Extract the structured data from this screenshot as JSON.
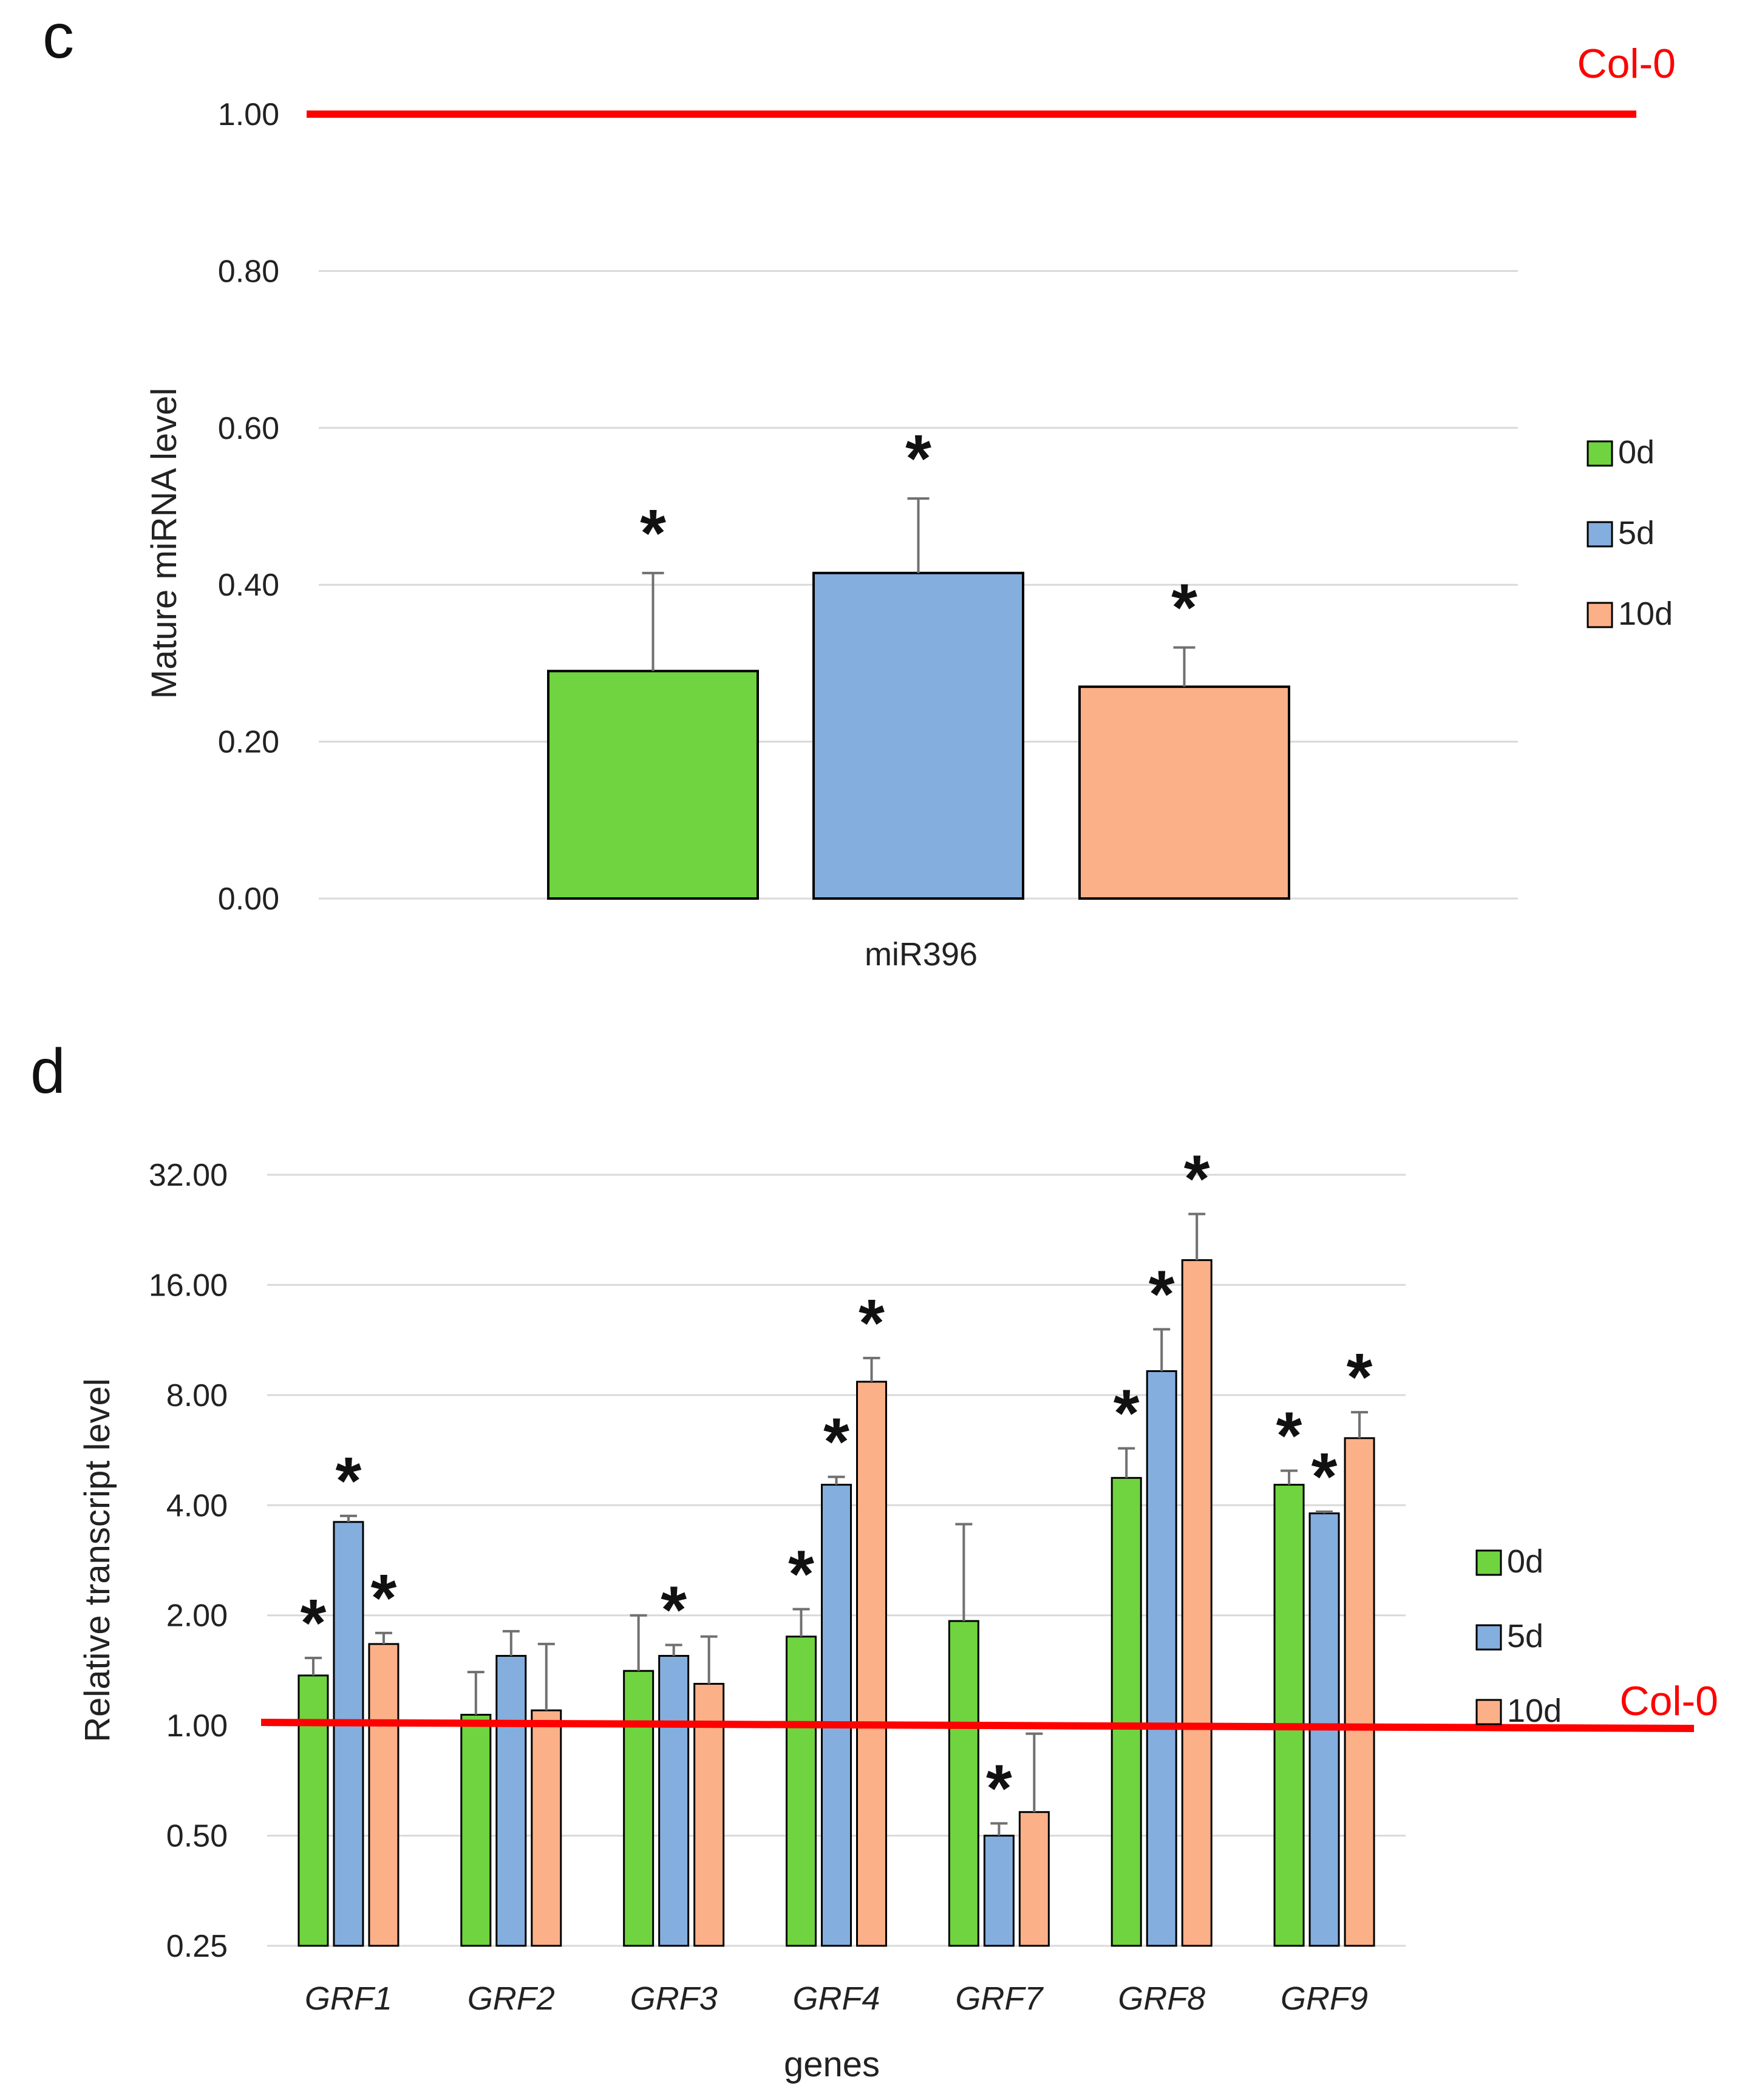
{
  "legend": [
    "0d",
    "5d",
    "10d"
  ],
  "colors": {
    "series": [
      "#70d340",
      "#84aede",
      "#fcb088"
    ],
    "reference": "#ff0000",
    "grid": "#d9d9d9",
    "error": "#707070"
  },
  "chart_data": [
    {
      "panel": "c",
      "type": "bar",
      "ylabel": "Mature miRNA level",
      "ylim": [
        0,
        1
      ],
      "yticks": [
        "0.00",
        "0.20",
        "0.40",
        "0.60",
        "0.80",
        "1.00"
      ],
      "categories": [
        "miR396"
      ],
      "series": [
        {
          "name": "0d",
          "values": [
            0.29
          ],
          "errors": [
            0.125
          ],
          "significant": [
            true
          ]
        },
        {
          "name": "5d",
          "values": [
            0.415
          ],
          "errors": [
            0.095
          ],
          "significant": [
            true
          ]
        },
        {
          "name": "10d",
          "values": [
            0.27
          ],
          "errors": [
            0.05
          ],
          "significant": [
            true
          ]
        }
      ],
      "reference": {
        "label": "Col-0",
        "value": 1.0
      },
      "significance_marker": "*"
    },
    {
      "panel": "d",
      "type": "bar",
      "yscale": "log2",
      "ylabel": "Relative transcript level",
      "xlabel": "genes",
      "ylim": [
        0.25,
        32
      ],
      "yticks": [
        "0.25",
        "0.50",
        "1.00",
        "2.00",
        "4.00",
        "8.00",
        "16.00",
        "32.00"
      ],
      "categories": [
        "GRF1",
        "GRF2",
        "GRF3",
        "GRF4",
        "GRF7",
        "GRF8",
        "GRF9"
      ],
      "series": [
        {
          "name": "0d",
          "values": [
            1.37,
            1.07,
            1.41,
            1.75,
            1.93,
            4.75,
            4.55
          ],
          "err_top": [
            1.53,
            1.4,
            2.0,
            2.08,
            3.55,
            5.72,
            4.97
          ],
          "significant": [
            true,
            false,
            false,
            true,
            false,
            true,
            true
          ]
        },
        {
          "name": "5d",
          "values": [
            3.6,
            1.55,
            1.55,
            4.55,
            0.5,
            9.3,
            3.8
          ],
          "err_top": [
            3.74,
            1.81,
            1.66,
            4.78,
            0.54,
            12.1,
            3.84
          ],
          "significant": [
            true,
            false,
            true,
            true,
            true,
            true,
            true
          ]
        },
        {
          "name": "10d",
          "values": [
            1.67,
            1.1,
            1.3,
            8.7,
            0.58,
            18.7,
            6.1
          ],
          "err_top": [
            1.79,
            1.67,
            1.75,
            10.1,
            0.95,
            25.0,
            7.18
          ],
          "significant": [
            true,
            false,
            false,
            true,
            false,
            true,
            true
          ]
        }
      ],
      "reference": {
        "label": "Col-0",
        "value": 1.0
      },
      "significance_marker": "*"
    }
  ]
}
